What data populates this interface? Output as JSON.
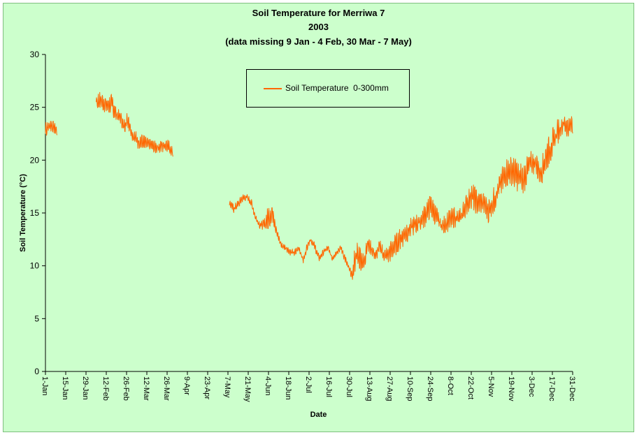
{
  "chart_data": {
    "type": "line",
    "title": "Soil Temperature for Merriwa 7",
    "subtitle": "2003",
    "note": "(data missing 9 Jan - 4 Feb, 30 Mar - 7 May)",
    "xlabel": "Date",
    "ylabel": "Soil Temperature (°C)",
    "ylim": [
      0,
      30
    ],
    "yticks": [
      0,
      5,
      10,
      15,
      20,
      25,
      30
    ],
    "xlim": [
      "2003-01-01",
      "2003-12-31"
    ],
    "xtick_labels": [
      "1-Jan",
      "15-Jan",
      "29-Jan",
      "12-Feb",
      "26-Feb",
      "12-Mar",
      "26-Mar",
      "9-Apr",
      "23-Apr",
      "7-May",
      "21-May",
      "4-Jun",
      "18-Jun",
      "2-Jul",
      "16-Jul",
      "30-Jul",
      "13-Aug",
      "27-Aug",
      "10-Sep",
      "24-Sep",
      "8-Oct",
      "22-Oct",
      "5-Nov",
      "19-Nov",
      "3-Dec",
      "17-Dec",
      "31-Dec"
    ],
    "grid": false,
    "legend_position": "top-center",
    "series": [
      {
        "name": "Soil Temperature  0-300mm",
        "color": "#ff6600",
        "segments": [
          [
            {
              "date": "2003-01-01",
              "min": 22.0,
              "max": 24.0
            },
            {
              "date": "2003-01-03",
              "min": 22.3,
              "max": 24.0
            },
            {
              "date": "2003-01-05",
              "min": 22.6,
              "max": 24.1
            },
            {
              "date": "2003-01-07",
              "min": 22.5,
              "max": 23.6
            },
            {
              "date": "2003-01-09",
              "min": 22.3,
              "max": 23.2
            }
          ],
          [
            {
              "date": "2003-02-05",
              "min": 24.6,
              "max": 26.4
            },
            {
              "date": "2003-02-08",
              "min": 24.8,
              "max": 26.5
            },
            {
              "date": "2003-02-12",
              "min": 24.4,
              "max": 26.0
            },
            {
              "date": "2003-02-16",
              "min": 24.2,
              "max": 26.3
            },
            {
              "date": "2003-02-19",
              "min": 23.6,
              "max": 25.0
            },
            {
              "date": "2003-02-22",
              "min": 23.4,
              "max": 24.6
            },
            {
              "date": "2003-02-24",
              "min": 22.5,
              "max": 23.8
            },
            {
              "date": "2003-02-27",
              "min": 23.0,
              "max": 24.8
            },
            {
              "date": "2003-03-02",
              "min": 21.8,
              "max": 23.0
            },
            {
              "date": "2003-03-06",
              "min": 21.0,
              "max": 22.6
            },
            {
              "date": "2003-03-10",
              "min": 20.8,
              "max": 22.4
            },
            {
              "date": "2003-03-14",
              "min": 21.0,
              "max": 22.0
            },
            {
              "date": "2003-03-18",
              "min": 20.6,
              "max": 21.8
            },
            {
              "date": "2003-03-22",
              "min": 20.6,
              "max": 22.0
            },
            {
              "date": "2003-03-26",
              "min": 20.8,
              "max": 22.2
            },
            {
              "date": "2003-03-30",
              "min": 20.2,
              "max": 21.2
            }
          ],
          [
            {
              "date": "2003-05-08",
              "min": 15.6,
              "max": 16.3
            },
            {
              "date": "2003-05-11",
              "min": 15.0,
              "max": 15.8
            },
            {
              "date": "2003-05-14",
              "min": 15.4,
              "max": 16.2
            },
            {
              "date": "2003-05-17",
              "min": 16.0,
              "max": 16.8
            },
            {
              "date": "2003-05-20",
              "min": 16.2,
              "max": 16.8
            },
            {
              "date": "2003-05-23",
              "min": 15.6,
              "max": 16.4
            },
            {
              "date": "2003-05-26",
              "min": 14.2,
              "max": 15.0
            },
            {
              "date": "2003-05-29",
              "min": 13.5,
              "max": 14.2
            },
            {
              "date": "2003-06-01",
              "min": 13.4,
              "max": 14.4
            },
            {
              "date": "2003-06-03",
              "min": 13.2,
              "max": 15.4
            },
            {
              "date": "2003-06-05",
              "min": 13.6,
              "max": 16.0
            },
            {
              "date": "2003-06-07",
              "min": 14.0,
              "max": 16.0
            },
            {
              "date": "2003-06-10",
              "min": 12.6,
              "max": 13.4
            },
            {
              "date": "2003-06-13",
              "min": 11.6,
              "max": 12.2
            },
            {
              "date": "2003-06-16",
              "min": 11.4,
              "max": 12.0
            },
            {
              "date": "2003-06-19",
              "min": 11.0,
              "max": 11.6
            },
            {
              "date": "2003-06-22",
              "min": 10.8,
              "max": 11.6
            },
            {
              "date": "2003-06-25",
              "min": 11.4,
              "max": 12.0
            },
            {
              "date": "2003-06-28",
              "min": 10.2,
              "max": 10.8
            },
            {
              "date": "2003-07-01",
              "min": 11.6,
              "max": 12.4
            },
            {
              "date": "2003-07-03",
              "min": 12.2,
              "max": 12.8
            },
            {
              "date": "2003-07-06",
              "min": 11.4,
              "max": 12.2
            },
            {
              "date": "2003-07-09",
              "min": 10.4,
              "max": 11.0
            },
            {
              "date": "2003-07-12",
              "min": 11.0,
              "max": 11.6
            },
            {
              "date": "2003-07-15",
              "min": 11.4,
              "max": 12.0
            },
            {
              "date": "2003-07-18",
              "min": 10.4,
              "max": 11.0
            },
            {
              "date": "2003-07-21",
              "min": 11.0,
              "max": 11.6
            },
            {
              "date": "2003-07-24",
              "min": 11.4,
              "max": 12.0
            },
            {
              "date": "2003-07-26",
              "min": 10.6,
              "max": 11.4
            },
            {
              "date": "2003-07-29",
              "min": 9.6,
              "max": 10.2
            },
            {
              "date": "2003-08-01",
              "min": 8.6,
              "max": 9.4
            },
            {
              "date": "2003-08-03",
              "min": 9.2,
              "max": 12.8
            },
            {
              "date": "2003-08-06",
              "min": 9.6,
              "max": 12.0
            },
            {
              "date": "2003-08-09",
              "min": 9.4,
              "max": 11.0
            },
            {
              "date": "2003-08-11",
              "min": 11.0,
              "max": 13.4
            },
            {
              "date": "2003-08-14",
              "min": 11.0,
              "max": 12.2
            },
            {
              "date": "2003-08-17",
              "min": 10.4,
              "max": 11.4
            },
            {
              "date": "2003-08-20",
              "min": 11.2,
              "max": 12.6
            },
            {
              "date": "2003-08-23",
              "min": 10.2,
              "max": 11.6
            },
            {
              "date": "2003-08-26",
              "min": 10.2,
              "max": 12.0
            },
            {
              "date": "2003-08-29",
              "min": 10.6,
              "max": 12.8
            },
            {
              "date": "2003-09-01",
              "min": 11.2,
              "max": 13.2
            },
            {
              "date": "2003-09-05",
              "min": 11.8,
              "max": 14.0
            },
            {
              "date": "2003-09-09",
              "min": 12.4,
              "max": 14.4
            },
            {
              "date": "2003-09-13",
              "min": 13.0,
              "max": 14.8
            },
            {
              "date": "2003-09-17",
              "min": 13.2,
              "max": 15.2
            },
            {
              "date": "2003-09-21",
              "min": 13.8,
              "max": 16.2
            },
            {
              "date": "2003-09-24",
              "min": 14.6,
              "max": 16.8
            },
            {
              "date": "2003-09-28",
              "min": 13.6,
              "max": 15.6
            },
            {
              "date": "2003-10-02",
              "min": 12.8,
              "max": 14.6
            },
            {
              "date": "2003-10-06",
              "min": 13.2,
              "max": 15.2
            },
            {
              "date": "2003-10-10",
              "min": 13.6,
              "max": 15.6
            },
            {
              "date": "2003-10-14",
              "min": 13.4,
              "max": 15.4
            },
            {
              "date": "2003-10-18",
              "min": 14.6,
              "max": 16.6
            },
            {
              "date": "2003-10-22",
              "min": 15.4,
              "max": 18.0
            },
            {
              "date": "2003-10-26",
              "min": 14.8,
              "max": 17.2
            },
            {
              "date": "2003-10-30",
              "min": 15.0,
              "max": 17.0
            },
            {
              "date": "2003-11-03",
              "min": 14.0,
              "max": 16.4
            },
            {
              "date": "2003-11-07",
              "min": 15.0,
              "max": 17.6
            },
            {
              "date": "2003-11-11",
              "min": 16.4,
              "max": 19.0
            },
            {
              "date": "2003-11-15",
              "min": 17.4,
              "max": 20.2
            },
            {
              "date": "2003-11-19",
              "min": 17.6,
              "max": 20.4
            },
            {
              "date": "2003-11-23",
              "min": 17.0,
              "max": 20.0
            },
            {
              "date": "2003-11-27",
              "min": 16.6,
              "max": 19.6
            },
            {
              "date": "2003-12-01",
              "min": 18.4,
              "max": 20.8
            },
            {
              "date": "2003-12-05",
              "min": 18.6,
              "max": 21.0
            },
            {
              "date": "2003-12-09",
              "min": 17.4,
              "max": 20.0
            },
            {
              "date": "2003-12-13",
              "min": 19.0,
              "max": 21.8
            },
            {
              "date": "2003-12-17",
              "min": 20.0,
              "max": 23.0
            },
            {
              "date": "2003-12-21",
              "min": 21.6,
              "max": 24.0
            },
            {
              "date": "2003-12-25",
              "min": 22.6,
              "max": 24.4
            },
            {
              "date": "2003-12-28",
              "min": 22.0,
              "max": 24.0
            },
            {
              "date": "2003-12-31",
              "min": 22.4,
              "max": 24.6
            }
          ]
        ]
      }
    ]
  }
}
